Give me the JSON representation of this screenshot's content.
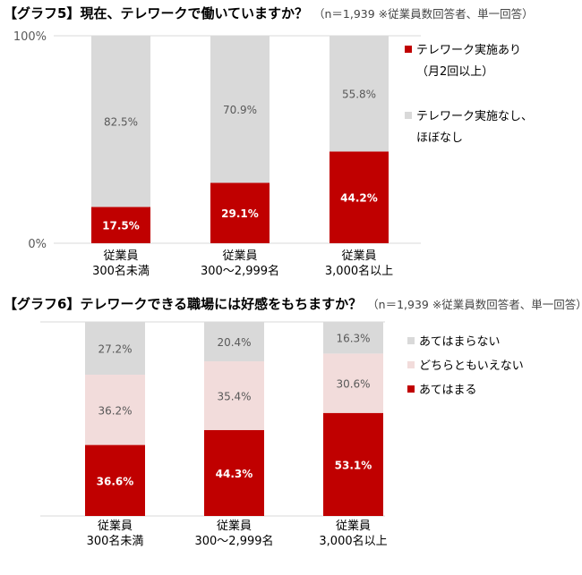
{
  "chart_data": [
    {
      "type": "bar",
      "stacked": true,
      "title": "【グラフ5】現在、テレワークで働いていますか？",
      "note": "（n＝1,939 ※従業員数回答者、単一回答）",
      "categories": [
        [
          "従業員",
          "300名未満"
        ],
        [
          "従業員",
          "300～2,999名"
        ],
        [
          "従業員",
          "3,000名以上"
        ]
      ],
      "ylim": [
        0,
        100
      ],
      "yticks": [
        "0%",
        "100%"
      ],
      "legend_position": "right",
      "series": [
        {
          "name": [
            "テレワーク実施あり",
            "（月2回以上）"
          ],
          "values": [
            17.5,
            29.1,
            44.2
          ],
          "labels": [
            "17.5%",
            "29.1%",
            "44.2%"
          ],
          "color": "#c00000"
        },
        {
          "name": [
            "テレワーク実施なし、",
            "ほぼなし"
          ],
          "values": [
            82.5,
            70.9,
            55.8
          ],
          "labels": [
            "82.5%",
            "70.9%",
            "55.8%"
          ],
          "color": "#d9d9d9"
        }
      ]
    },
    {
      "type": "bar",
      "stacked": true,
      "title": "【グラフ6】テレワークできる職場には好感をもちますか？",
      "note": "（n＝1,939 ※従業員数回答者、単一回答）",
      "categories": [
        [
          "従業員",
          "300名未満"
        ],
        [
          "従業員",
          "300～2,999名"
        ],
        [
          "従業員",
          "3,000名以上"
        ]
      ],
      "ylim": [
        0,
        100
      ],
      "legend_position": "right",
      "series": [
        {
          "name": [
            "あてはまる"
          ],
          "values": [
            36.6,
            44.3,
            53.1
          ],
          "labels": [
            "36.6%",
            "44.3%",
            "53.1%"
          ],
          "color": "#c00000"
        },
        {
          "name": [
            "どちらともいえない"
          ],
          "values": [
            36.2,
            35.4,
            30.6
          ],
          "labels": [
            "36.2%",
            "35.4%",
            "30.6%"
          ],
          "color": "#f2dcdb"
        },
        {
          "name": [
            "あてはまらない"
          ],
          "values": [
            27.2,
            20.4,
            16.3
          ],
          "labels": [
            "27.2%",
            "20.4%",
            "16.3%"
          ],
          "color": "#d9d9d9"
        }
      ]
    }
  ]
}
